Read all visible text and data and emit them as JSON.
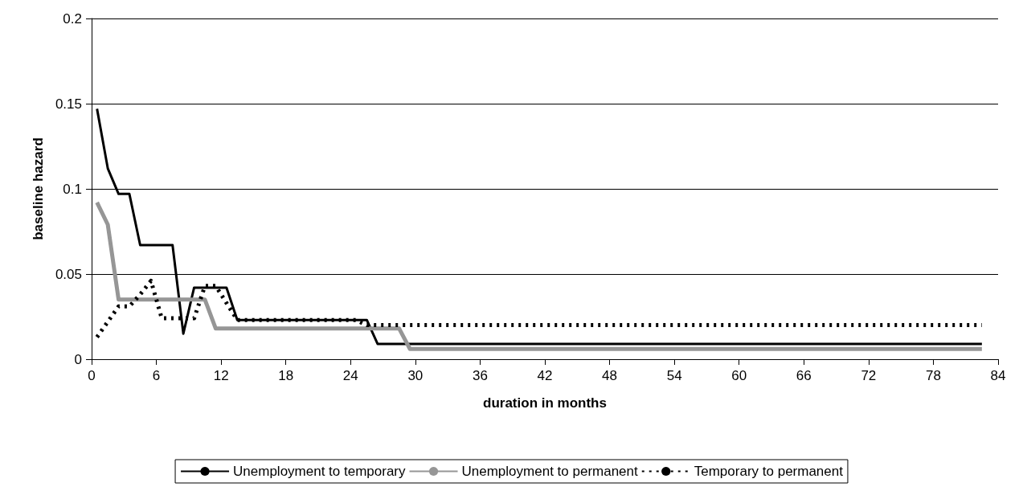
{
  "chart_data": {
    "type": "line",
    "xlabel": "duration in months",
    "ylabel": "baseline hazard",
    "xlim": [
      0,
      84
    ],
    "xticks": [
      0,
      6,
      12,
      18,
      24,
      30,
      36,
      42,
      48,
      54,
      60,
      66,
      72,
      78,
      84
    ],
    "ylim": [
      0,
      0.2
    ],
    "yticks": [
      0,
      0.05,
      0.1,
      0.15,
      0.2
    ],
    "grid": "y",
    "legend": "bottom",
    "marker": "none",
    "series": [
      {
        "name": "Unemployment to temporary",
        "color": "#000000",
        "line_style": "solid",
        "x": [
          0.5,
          1.5,
          2.5,
          3.5,
          4.5,
          7.5,
          8.5,
          9.5,
          12.5,
          13.5,
          25.5,
          26.5,
          82.5
        ],
        "values": [
          0.147,
          0.112,
          0.097,
          0.097,
          0.067,
          0.067,
          0.015,
          0.042,
          0.042,
          0.023,
          0.023,
          0.009,
          0.009
        ]
      },
      {
        "name": "Unemployment to permanent",
        "color": "#969696",
        "line_style": "solid",
        "x": [
          0.5,
          1.5,
          2.5,
          10.5,
          11.5,
          28.5,
          29.5,
          82.5
        ],
        "values": [
          0.092,
          0.079,
          0.035,
          0.035,
          0.018,
          0.018,
          0.006,
          0.006
        ]
      },
      {
        "name": "Temporary to permanent",
        "color": "#000000",
        "line_style": "dashed",
        "x": [
          0.5,
          1.5,
          2.5,
          3.5,
          4.5,
          5.5,
          6.5,
          9.5,
          10.5,
          11.5,
          12.5,
          13.5,
          24.5,
          25.5,
          82.5
        ],
        "values": [
          0.013,
          0.022,
          0.031,
          0.031,
          0.038,
          0.046,
          0.024,
          0.024,
          0.043,
          0.043,
          0.033,
          0.023,
          0.023,
          0.02,
          0.02
        ]
      }
    ]
  }
}
